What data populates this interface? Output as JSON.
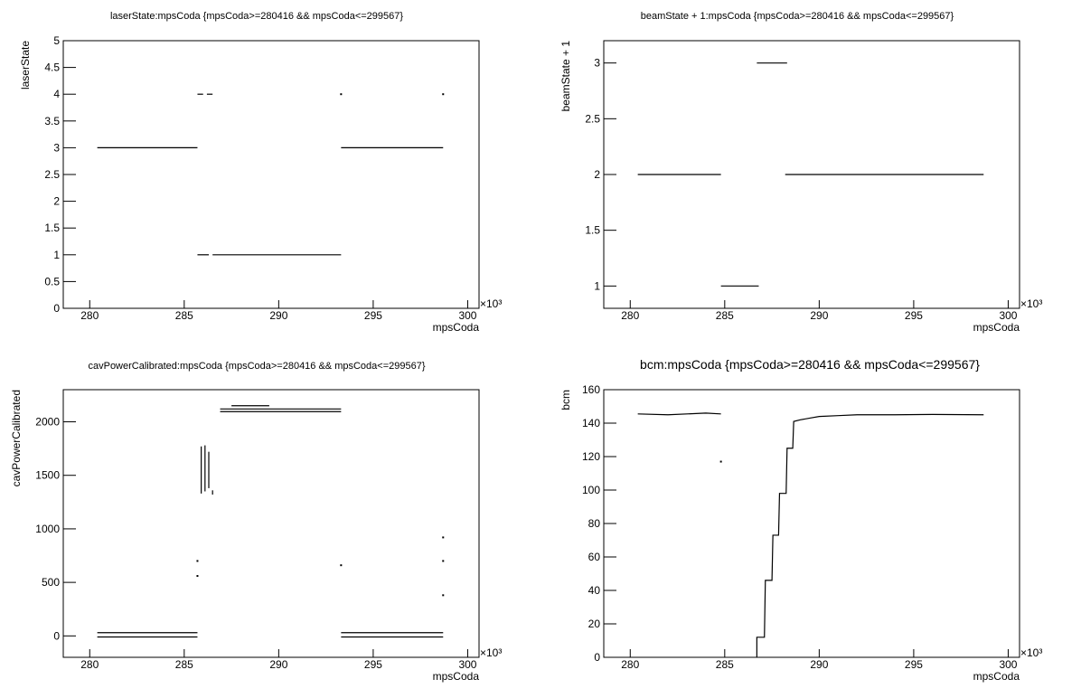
{
  "chart_data": [
    {
      "type": "line",
      "title": "laserState:mpsCoda {mpsCoda>=280416 && mpsCoda<=299567}",
      "x_label": "mpsCoda",
      "y_label": "laserState",
      "x_exponent": "×10³",
      "xlim": [
        278.6,
        300.6
      ],
      "xticks": [
        280,
        285,
        290,
        295,
        300
      ],
      "ylim": [
        0,
        5
      ],
      "yticks": [
        0,
        0.5,
        1,
        1.5,
        2,
        2.5,
        3,
        3.5,
        4,
        4.5,
        5
      ],
      "series": [
        {
          "color": "#000000",
          "x": [
            280.4,
            285.7,
            null,
            285.7,
            286.0,
            null,
            286.2,
            286.5,
            null,
            285.7,
            286.3,
            null,
            286.5,
            293.3,
            null,
            293.3,
            298.7,
            null,
            293.3,
            null,
            298.7
          ],
          "values": [
            3,
            3,
            null,
            4,
            4,
            null,
            4,
            4,
            null,
            1,
            1,
            null,
            1,
            1,
            null,
            3,
            3,
            null,
            4,
            null,
            4
          ]
        }
      ]
    },
    {
      "type": "line",
      "title": "beamState + 1:mpsCoda {mpsCoda>=280416 && mpsCoda<=299567}",
      "x_label": "mpsCoda",
      "y_label": "beamState + 1",
      "x_exponent": "×10³",
      "xlim": [
        278.6,
        300.6
      ],
      "xticks": [
        280,
        285,
        290,
        295,
        300
      ],
      "ylim": [
        0.8,
        3.2
      ],
      "yticks": [
        1,
        1.5,
        2,
        2.5,
        3
      ],
      "series": [
        {
          "color": "#000000",
          "x": [
            280.4,
            284.8,
            null,
            284.8,
            286.8,
            null,
            286.7,
            288.3,
            null,
            288.2,
            298.7
          ],
          "values": [
            2,
            2,
            null,
            1,
            1,
            null,
            3,
            3,
            null,
            2,
            2
          ]
        }
      ]
    },
    {
      "type": "line",
      "title": "cavPowerCalibrated:mpsCoda {mpsCoda>=280416 && mpsCoda<=299567}",
      "x_label": "mpsCoda",
      "y_label": "cavPowerCalibrated",
      "x_exponent": "×10³",
      "xlim": [
        278.6,
        300.6
      ],
      "xticks": [
        280,
        285,
        290,
        295,
        300
      ],
      "ylim": [
        -200,
        2300
      ],
      "yticks": [
        0,
        500,
        1000,
        1500,
        2000
      ],
      "series": [
        {
          "color": "#000000",
          "x": [
            280.4,
            285.7,
            null,
            280.4,
            285.7,
            null,
            285.7,
            null,
            285.7,
            null,
            285.9,
            285.9,
            null,
            286.1,
            286.1,
            null,
            286.3,
            286.3,
            null,
            286.5,
            286.5,
            null,
            286.9,
            293.3,
            null,
            286.9,
            293.3,
            null,
            287.5,
            289.5,
            null,
            293.3,
            298.7,
            null,
            293.3,
            298.7,
            null,
            293.3,
            null,
            298.7,
            null,
            298.7,
            null,
            298.7
          ],
          "values": [
            30,
            30,
            null,
            -10,
            -10,
            null,
            700,
            null,
            560,
            null,
            1330,
            1770,
            null,
            1350,
            1780,
            null,
            1380,
            1720,
            null,
            1320,
            1360,
            null,
            2120,
            2120,
            null,
            2095,
            2095,
            null,
            2150,
            2150,
            null,
            30,
            30,
            null,
            -10,
            -10,
            null,
            660,
            null,
            920,
            null,
            700,
            null,
            380
          ]
        }
      ]
    },
    {
      "type": "line",
      "title": "bcm:mpsCoda {mpsCoda>=280416 && mpsCoda<=299567}",
      "x_label": "mpsCoda",
      "y_label": "bcm",
      "x_exponent": "×10³",
      "xlim": [
        278.6,
        300.6
      ],
      "xticks": [
        280,
        285,
        290,
        295,
        300
      ],
      "ylim": [
        0,
        160
      ],
      "yticks": [
        0,
        20,
        40,
        60,
        80,
        100,
        120,
        140,
        160
      ],
      "series": [
        {
          "color": "#000000",
          "x": [
            280.4,
            282,
            284,
            284.8,
            null,
            284.8,
            null,
            286.7,
            286.7,
            287.1,
            287.15,
            287.5,
            287.55,
            287.85,
            287.9,
            288.25,
            288.3,
            288.6,
            288.65,
            289,
            289.5,
            290,
            291,
            292,
            294,
            296,
            298.7
          ],
          "values": [
            145.5,
            145,
            146,
            145.5,
            null,
            117,
            null,
            0,
            12,
            12,
            46,
            46,
            73,
            73,
            98,
            98,
            125,
            125,
            141,
            142,
            143,
            144,
            144.5,
            145,
            145,
            145.2,
            145
          ]
        }
      ]
    }
  ]
}
